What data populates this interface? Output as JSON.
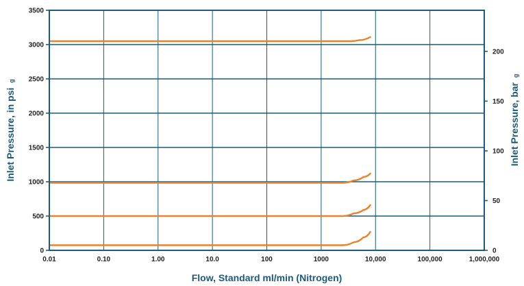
{
  "chart_data": {
    "type": "line",
    "title": "",
    "xlabel": "Flow, Standard ml/min (Nitrogen)",
    "ylabel": "Inlet Pressure, in psi g",
    "ylabel_main": "Inlet Pressure, in psi",
    "ylabel_sub": "g",
    "y2label_main": "Inlet Pressure, bar",
    "y2label_sub": "g",
    "x_scale": "log",
    "xlim": [
      0.01,
      1000000
    ],
    "ylim": [
      0,
      3500
    ],
    "y2lim": [
      0,
      241.3
    ],
    "x_ticks": [
      {
        "value": 0.01,
        "label": "0.01"
      },
      {
        "value": 0.1,
        "label": "0.10"
      },
      {
        "value": 1,
        "label": "1.00"
      },
      {
        "value": 10,
        "label": "10.0"
      },
      {
        "value": 100,
        "label": "100"
      },
      {
        "value": 1000,
        "label": "1000"
      },
      {
        "value": 10000,
        "label": "10,000"
      },
      {
        "value": 100000,
        "label": "100,000"
      },
      {
        "value": 1000000,
        "label": "1,000,000"
      }
    ],
    "y_ticks": [
      {
        "value": 0,
        "label": "0"
      },
      {
        "value": 500,
        "label": "500"
      },
      {
        "value": 1000,
        "label": "1000"
      },
      {
        "value": 1500,
        "label": "1500"
      },
      {
        "value": 2000,
        "label": "2000"
      },
      {
        "value": 2500,
        "label": "2500"
      },
      {
        "value": 3000,
        "label": "3000"
      },
      {
        "value": 3500,
        "label": "3500"
      }
    ],
    "y2_ticks": [
      {
        "value": 0,
        "label": "0"
      },
      {
        "value": 50,
        "label": "50"
      },
      {
        "value": 100,
        "label": "100"
      },
      {
        "value": 150,
        "label": "150"
      },
      {
        "value": 200,
        "label": "200"
      }
    ],
    "grid": true,
    "legend": "none",
    "colors": {
      "series": "#e8822e",
      "grid": "#1a5a7a",
      "text": "#1f1f1f",
      "title": "#1a5a7a"
    },
    "series": [
      {
        "x": [
          0.01,
          2500,
          4000,
          6000,
          8000
        ],
        "y": [
          75,
          75,
          120,
          190,
          270
        ]
      },
      {
        "x": [
          0.01,
          2500,
          4000,
          6000,
          8000
        ],
        "y": [
          500,
          500,
          540,
          590,
          660
        ]
      },
      {
        "x": [
          0.01,
          2500,
          4000,
          6000,
          8000
        ],
        "y": [
          985,
          985,
          1020,
          1070,
          1120
        ]
      },
      {
        "x": [
          0.01,
          3500,
          5000,
          8000
        ],
        "y": [
          3050,
          3050,
          3065,
          3110
        ]
      }
    ]
  }
}
